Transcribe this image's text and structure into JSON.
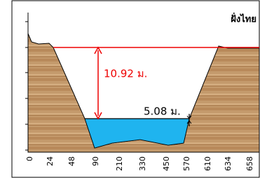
{
  "bank_label": "ฝั่งไทย",
  "annotations": {
    "height": "10.92 ม.",
    "depth": "5.08 ม."
  },
  "x_axis": {
    "labels": [
      "0",
      "24",
      "48",
      "90",
      "210",
      "330",
      "450",
      "570",
      "610",
      "634",
      "658"
    ]
  }
}
